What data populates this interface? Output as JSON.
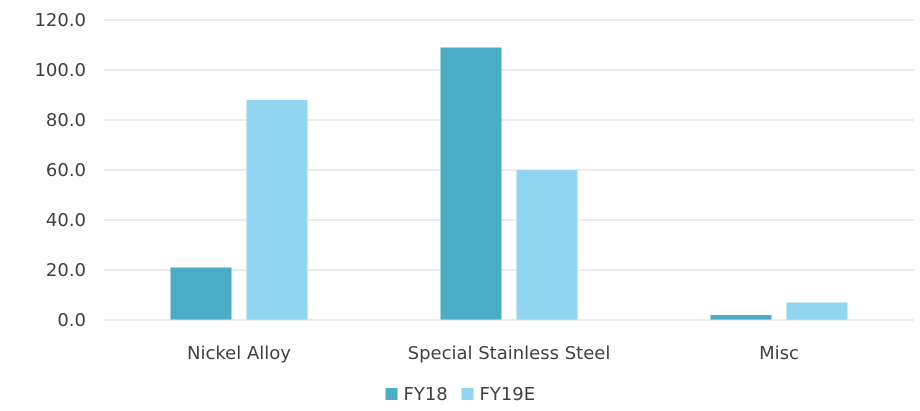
{
  "chart_data": {
    "type": "bar",
    "title": "",
    "xlabel": "",
    "ylabel": "",
    "categories": [
      "Nickel Alloy",
      "Special Stainless Steel",
      "Misc"
    ],
    "series": [
      {
        "name": "FY18",
        "values": [
          21,
          109,
          2
        ],
        "color": "#4BACC6"
      },
      {
        "name": "FY19E",
        "values": [
          88,
          60,
          7
        ],
        "color": "#92D5F0"
      }
    ],
    "ylim": [
      0,
      120
    ],
    "yticks": [
      0,
      20,
      40,
      60,
      80,
      100,
      120
    ],
    "ytick_labels": [
      "0.0",
      "20.0",
      "40.0",
      "60.0",
      "80.0",
      "100.0",
      "120.0"
    ],
    "grid": true,
    "legend_position": "bottom"
  }
}
